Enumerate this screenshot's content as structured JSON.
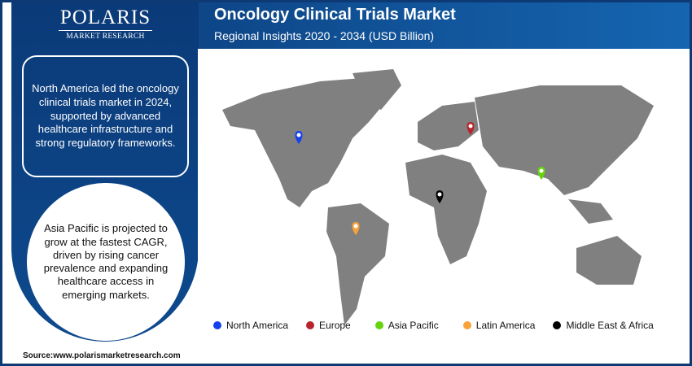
{
  "logo": {
    "name": "POLARIS",
    "tagline": "MARKET RESEARCH"
  },
  "header": {
    "title": "Oncology Clinical Trials Market",
    "subtitle": "Regional Insights 2020 - 2034 (USD Billion)"
  },
  "callouts": {
    "box": "North America led the oncology clinical trials market in 2024, supported by advanced healthcare infrastructure and strong regulatory frameworks.",
    "circle": "Asia Pacific is projected to grow at the fastest CAGR, driven by rising cancer prevalence and expanding healthcare access in emerging markets."
  },
  "legend": [
    {
      "label": "North America",
      "color": "#1440f0"
    },
    {
      "label": "Europe",
      "color": "#b8242c"
    },
    {
      "label": "Asia Pacific",
      "color": "#66d40c"
    },
    {
      "label": "Latin America",
      "color": "#f7a23a"
    },
    {
      "label": "Middle East & Africa",
      "color": "#000000"
    }
  ],
  "map_color": "#808080",
  "source": "Source:www.polarismarketresearch.com"
}
